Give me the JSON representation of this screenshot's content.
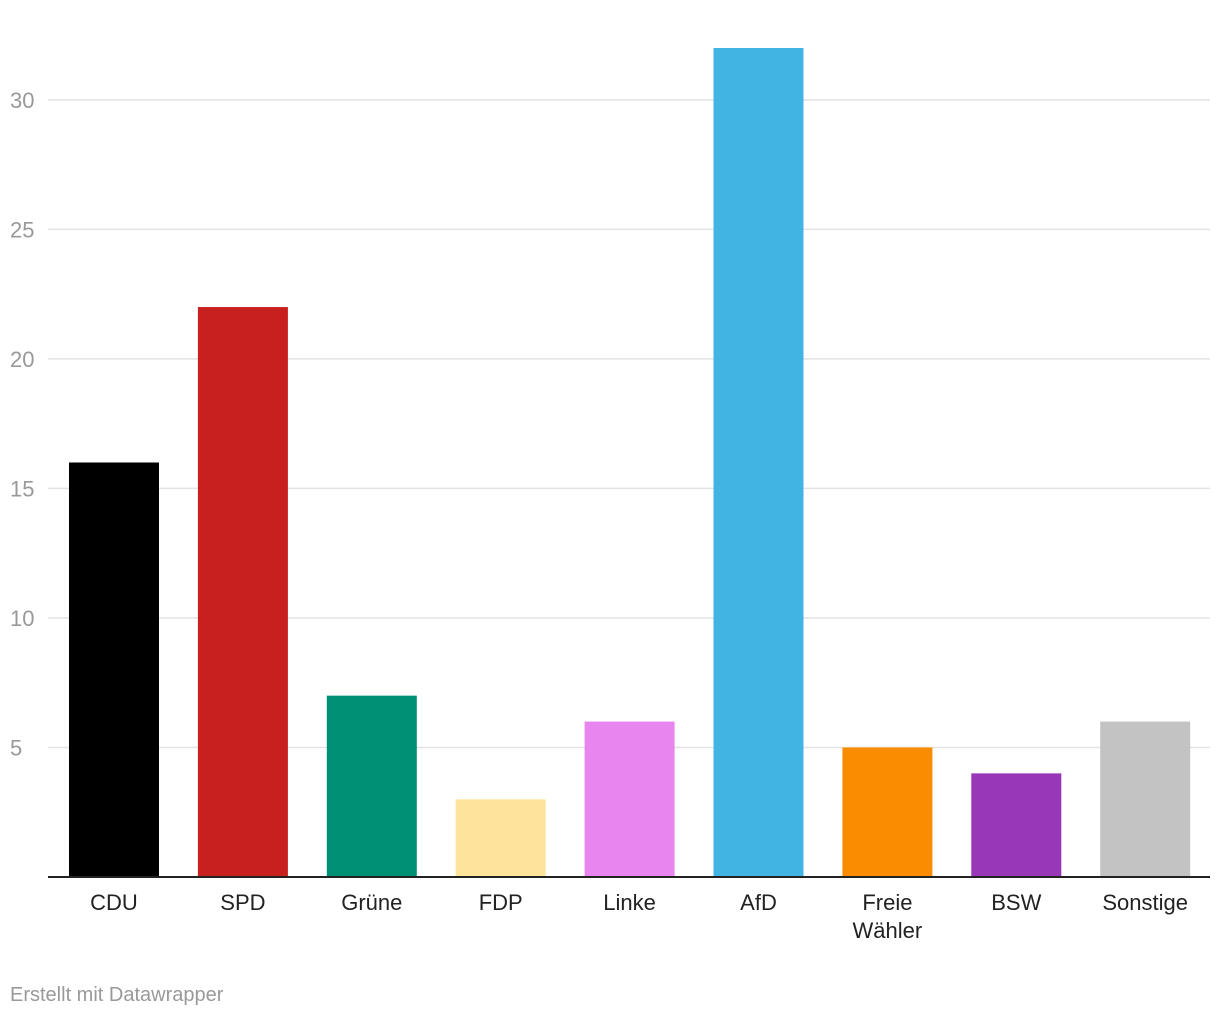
{
  "chart_data": {
    "type": "bar",
    "categories": [
      "CDU",
      "SPD",
      "Grüne",
      "FDP",
      "Linke",
      "AfD",
      "Freie Wähler",
      "BSW",
      "Sonstige"
    ],
    "category_label_lines": [
      [
        "CDU"
      ],
      [
        "SPD"
      ],
      [
        "Grüne"
      ],
      [
        "FDP"
      ],
      [
        "Linke"
      ],
      [
        "AfD"
      ],
      [
        "Freie",
        "Wähler"
      ],
      [
        "BSW"
      ],
      [
        "Sonstige"
      ]
    ],
    "values": [
      16,
      22,
      7,
      3,
      6,
      32,
      5,
      4,
      6
    ],
    "colors": [
      "#000000",
      "#c81f1f",
      "#009076",
      "#fee49b",
      "#e985ee",
      "#42b4e4",
      "#f98c00",
      "#9837b8",
      "#c3c3c3"
    ],
    "yticks": [
      5,
      10,
      15,
      20,
      25,
      30
    ],
    "ylim": [
      0,
      32
    ],
    "grid": true,
    "title": "",
    "xlabel": "",
    "ylabel": ""
  },
  "credit": "Erstellt mit Datawrapper"
}
